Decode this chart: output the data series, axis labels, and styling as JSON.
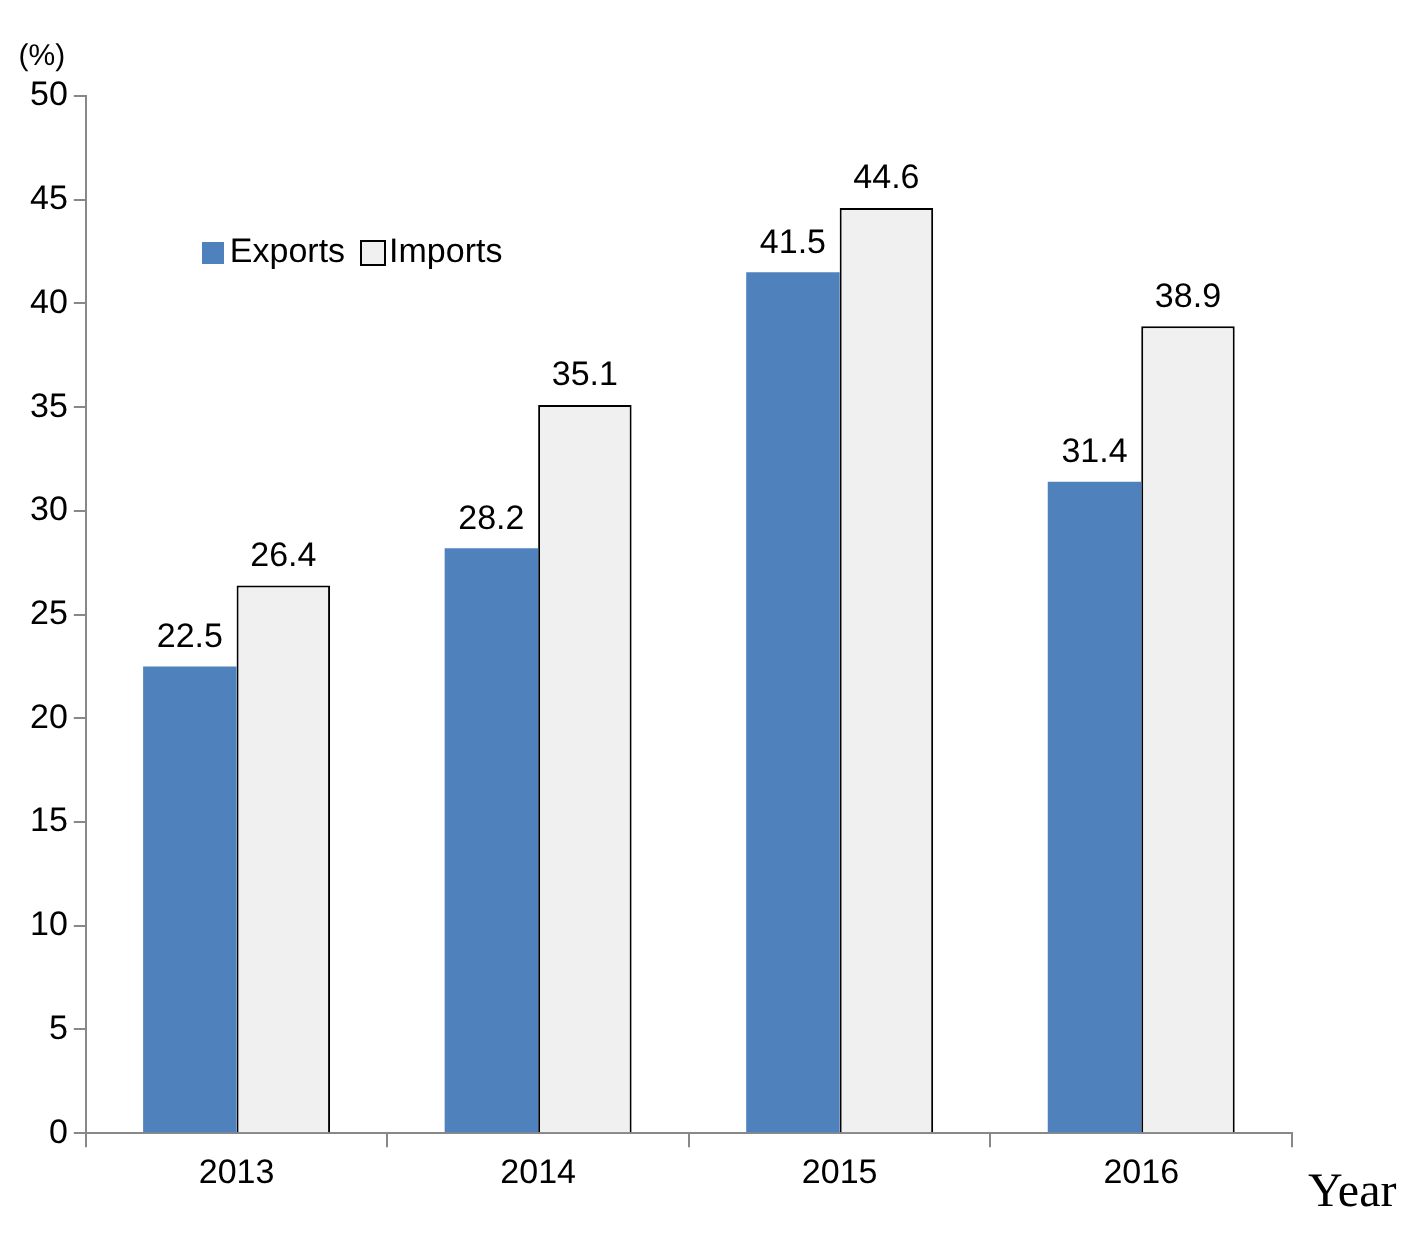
{
  "chart_data": {
    "type": "bar",
    "ylabel": "(%)",
    "xlabel": "Year",
    "categories": [
      "2013",
      "2014",
      "2015",
      "2016"
    ],
    "series": [
      {
        "name": "Exports",
        "color": "#4f81bd",
        "values": [
          22.5,
          28.2,
          41.5,
          31.4
        ]
      },
      {
        "name": "Imports",
        "color": "#f0f0f0",
        "values": [
          26.4,
          35.1,
          44.6,
          38.9
        ]
      }
    ],
    "ylim": [
      0,
      50
    ],
    "yticks": [
      0,
      5,
      10,
      15,
      20,
      25,
      30,
      35,
      40,
      45,
      50
    ],
    "grid": false,
    "legend": "top left",
    "data_labels": true
  }
}
